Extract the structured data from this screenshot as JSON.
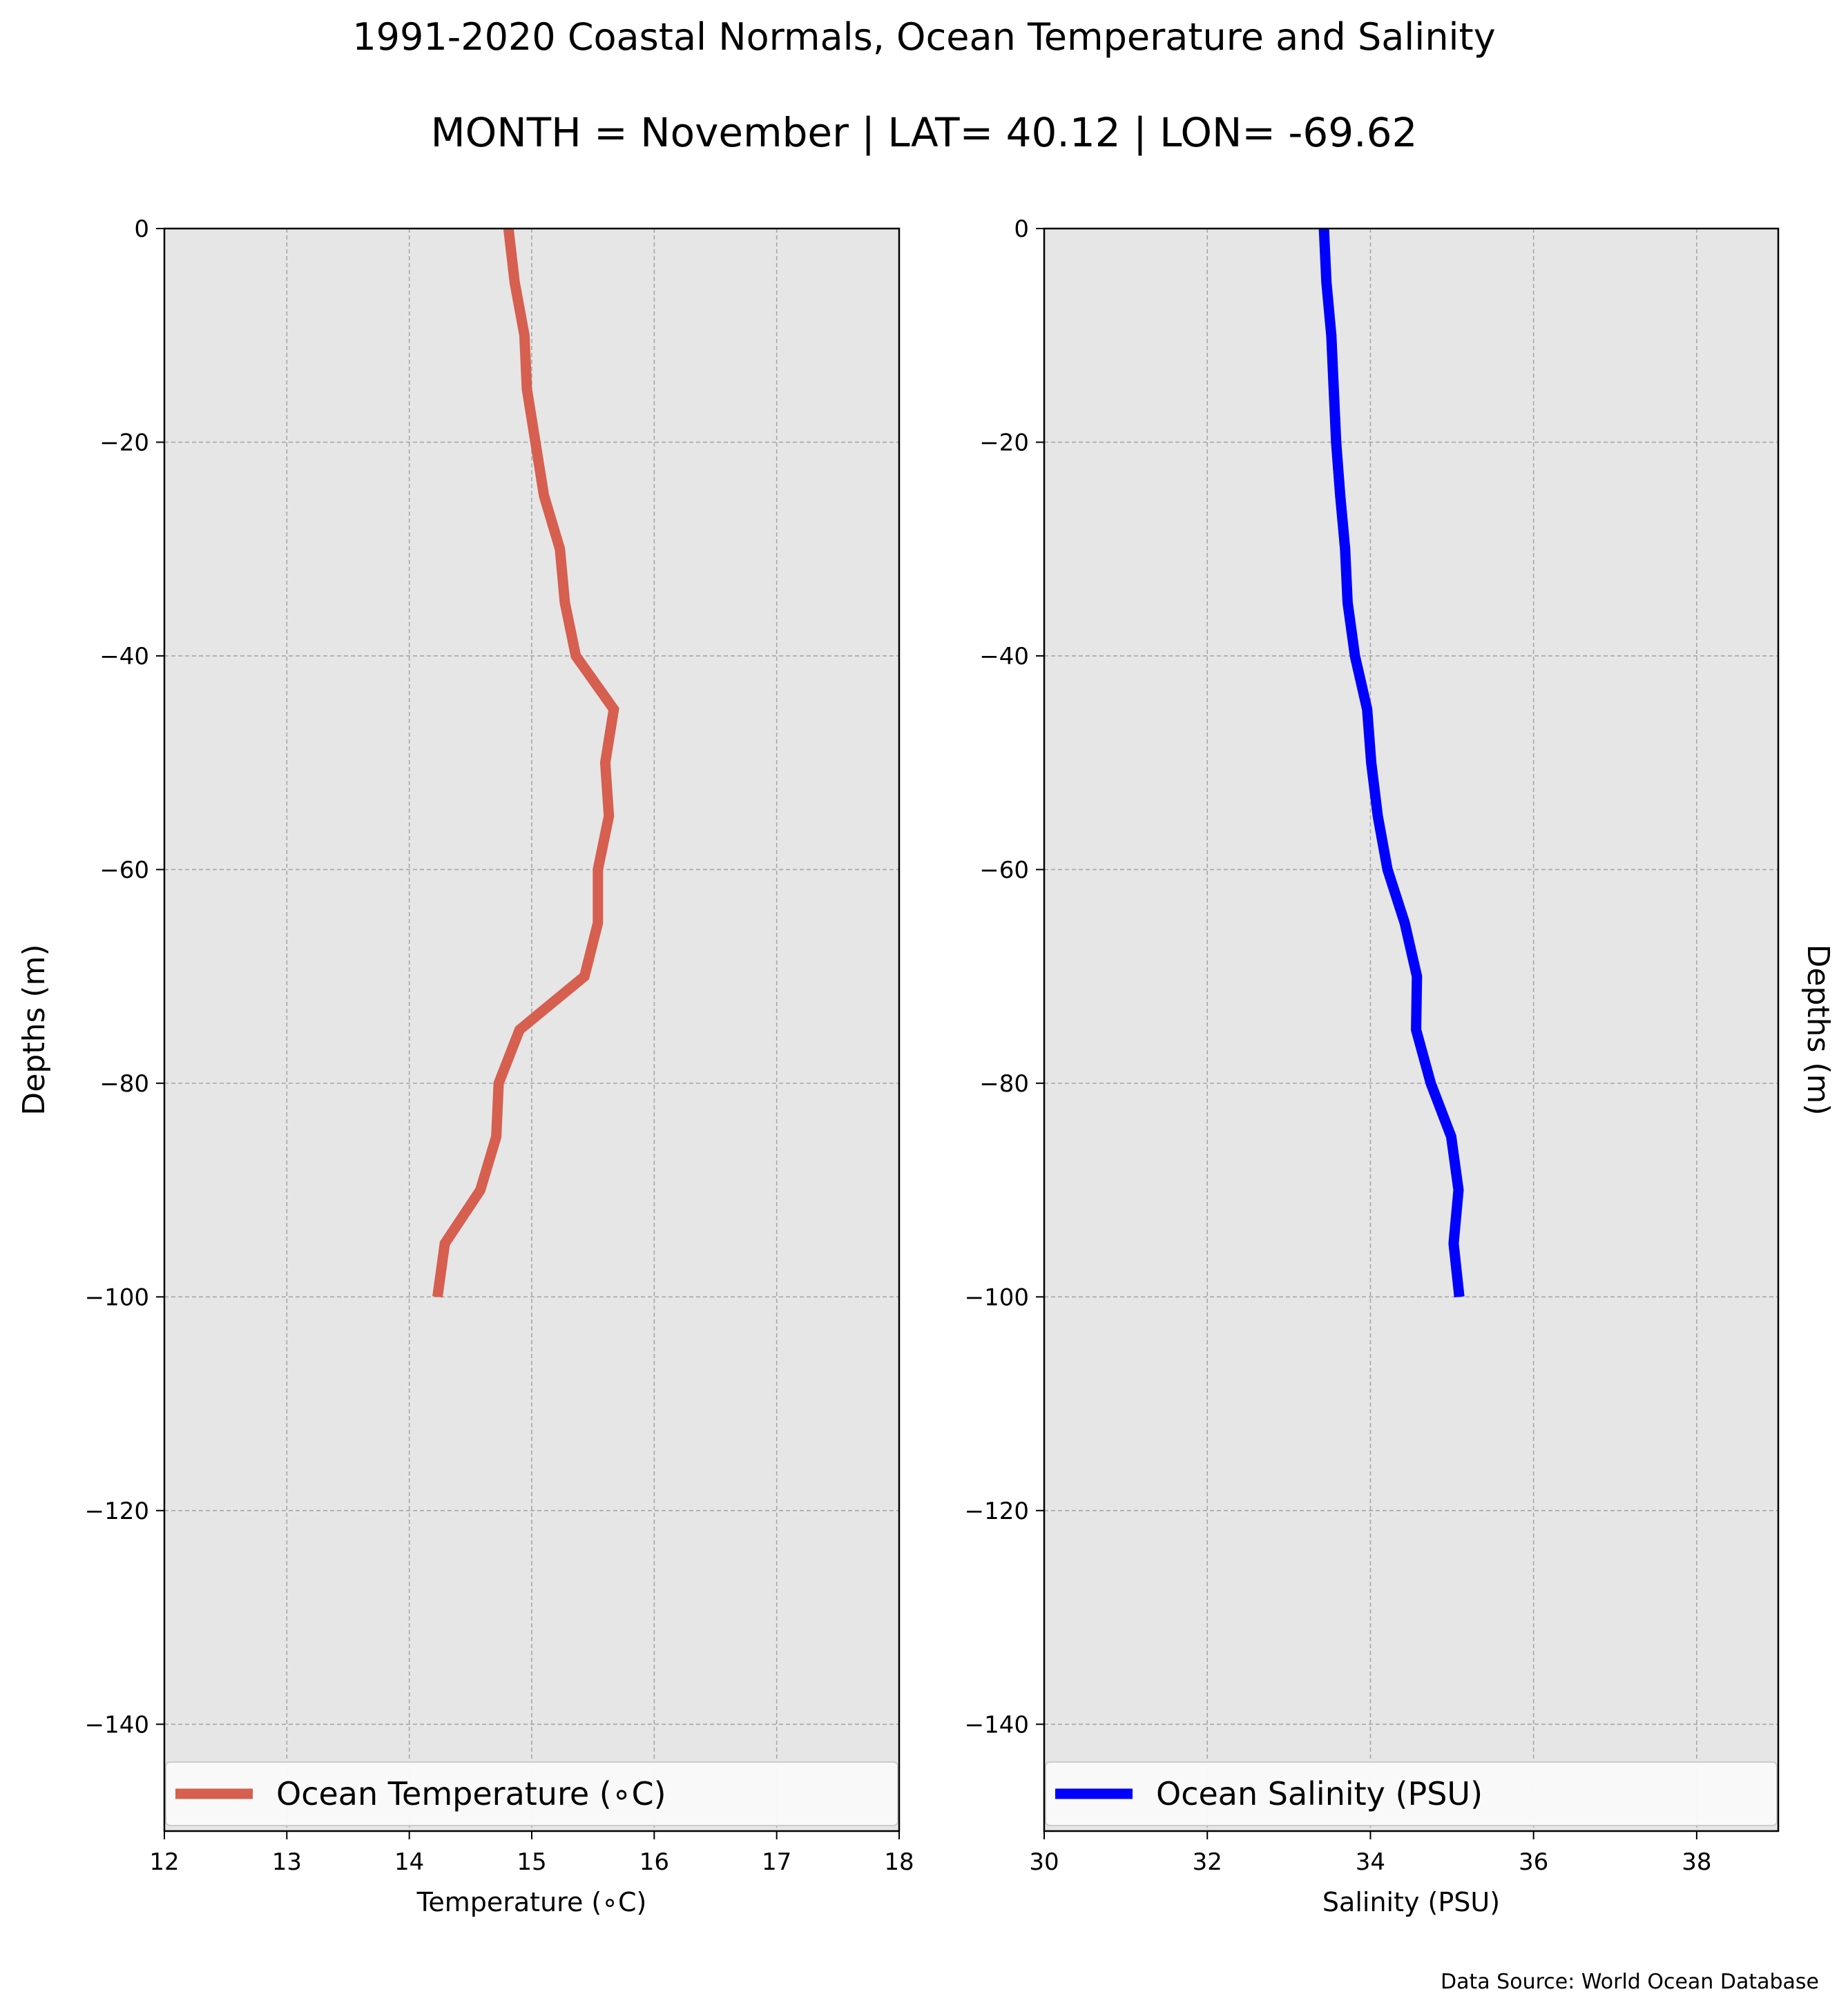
{
  "title": "1991-2020 Coastal Normals, Ocean Temperature and Salinity",
  "subtitle": "MONTH = November | LAT= 40.12 | LON= -69.62",
  "source": "Data Source: World Ocean Database",
  "chart_data": [
    {
      "type": "line",
      "xlabel": "Temperature ($^\\circ$C)",
      "xlabel_display": "Temperature (∘C)",
      "ylabel": "Depths (m)",
      "xlim": [
        12,
        18
      ],
      "ylim": [
        -150,
        0
      ],
      "xticks": [
        12,
        13,
        14,
        15,
        16,
        17,
        18
      ],
      "yticks": [
        0,
        -20,
        -40,
        -60,
        -80,
        -100,
        -120,
        -140
      ],
      "grid": true,
      "legend_position": "bottom",
      "series": [
        {
          "name": "Ocean Temperature (∘C)",
          "color": "#d65f4f",
          "x": [
            14.81,
            14.86,
            14.94,
            14.96,
            15.03,
            15.1,
            15.23,
            15.27,
            15.36,
            15.67,
            15.6,
            15.63,
            15.54,
            15.54,
            15.43,
            14.9,
            14.73,
            14.71,
            14.58,
            14.29,
            14.23
          ],
          "y": [
            0,
            -5,
            -10,
            -15,
            -20,
            -25,
            -30,
            -35,
            -40,
            -45,
            -50,
            -55,
            -60,
            -65,
            -70,
            -75,
            -80,
            -85,
            -90,
            -95,
            -100
          ]
        }
      ]
    },
    {
      "type": "line",
      "xlabel": "Salinity (PSU)",
      "ylabel": "Depths (m)",
      "xlim": [
        30,
        39
      ],
      "ylim": [
        -150,
        0
      ],
      "xticks": [
        30,
        32,
        34,
        36,
        38
      ],
      "yticks": [
        0,
        -20,
        -40,
        -60,
        -80,
        -100,
        -120,
        -140
      ],
      "grid": true,
      "legend_position": "bottom",
      "series": [
        {
          "name": "Ocean Salinity (PSU)",
          "color": "#0000ff",
          "x": [
            33.43,
            33.46,
            33.52,
            33.55,
            33.58,
            33.63,
            33.69,
            33.72,
            33.81,
            33.96,
            34.01,
            34.09,
            34.21,
            34.42,
            34.57,
            34.56,
            34.74,
            34.99,
            35.08,
            35.02,
            35.09
          ],
          "y": [
            0,
            -5,
            -10,
            -15,
            -20,
            -25,
            -30,
            -35,
            -40,
            -45,
            -50,
            -55,
            -60,
            -65,
            -70,
            -75,
            -80,
            -85,
            -90,
            -95,
            -100
          ]
        }
      ]
    }
  ]
}
